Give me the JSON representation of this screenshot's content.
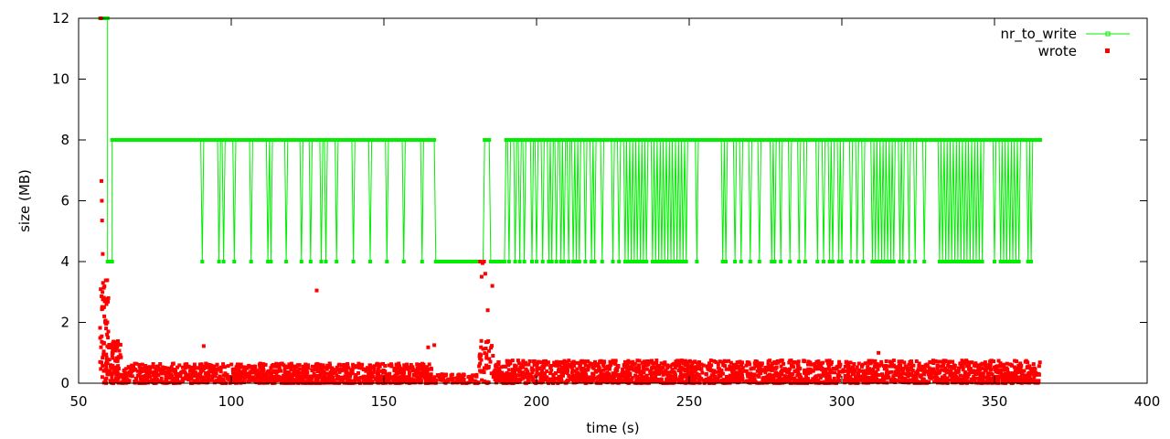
{
  "chart_data": {
    "type": "line",
    "xlabel": "time (s)",
    "ylabel": "size (MB)",
    "xlim": [
      50,
      400
    ],
    "ylim": [
      0,
      12
    ],
    "x_ticks": [
      "50",
      "100",
      "150",
      "200",
      "250",
      "300",
      "350",
      "400"
    ],
    "y_ticks": [
      "0",
      "2",
      "4",
      "6",
      "8",
      "10",
      "12"
    ],
    "grid": false,
    "legend_position": "top-right",
    "series": [
      {
        "name": "nr_to_write",
        "style": "line+points",
        "color": "#00ee00",
        "segments": [
          {
            "x_start": 57,
            "x_end": 59.5,
            "y": 12
          },
          {
            "x_start": 59.5,
            "x_end": 61,
            "y": 4
          },
          {
            "x_start": 61,
            "x_end": 166.5,
            "y": 8,
            "dips_to": 4,
            "dips_at": [
              90.5,
              96,
              97.5,
              101,
              106.5,
              112,
              113,
              118,
              123,
              126,
              129.5,
              131,
              134.5,
              140,
              145.5,
              151,
              156.5,
              162.5
            ]
          },
          {
            "x_start": 167,
            "x_end": 182.5,
            "y": 4
          },
          {
            "x_start": 183,
            "x_end": 184.5,
            "y": 8
          },
          {
            "x_start": 185,
            "x_end": 189.5,
            "y": 4
          },
          {
            "x_start": 190,
            "x_end": 365,
            "y": 8,
            "dips_to": 4,
            "dips_at": [
              191,
              193,
              194.5,
              196,
              198.5,
              200,
              202,
              204,
              205,
              206.5,
              208,
              209,
              210.5,
              212,
              213,
              214,
              216,
              218,
              219,
              221.5,
              225,
              227,
              229,
              230,
              231,
              232,
              233,
              234,
              235,
              236,
              238,
              239,
              240,
              241,
              242,
              243,
              244,
              245,
              246,
              247,
              248,
              249,
              252.5,
              261,
              262,
              265,
              267,
              270,
              273,
              277,
              278,
              280,
              283,
              286,
              288,
              292,
              294,
              296,
              297,
              299,
              300,
              303,
              305,
              307,
              310,
              311,
              312,
              313,
              314,
              315,
              316,
              317,
              319,
              320,
              322,
              324,
              327,
              332,
              333,
              334,
              335,
              336,
              337,
              338,
              339,
              340,
              341,
              342,
              343,
              344,
              345,
              346,
              350,
              352,
              353,
              354,
              355,
              356,
              357,
              358,
              361,
              362
            ]
          }
        ]
      },
      {
        "name": "wrote",
        "style": "points",
        "color": "#ff0000",
        "clusters": [
          {
            "x_start": 57,
            "x_end": 60,
            "y_min": 0,
            "y_max": 3.4,
            "count": 60
          },
          {
            "x_start": 60,
            "x_end": 64,
            "y_min": 0,
            "y_max": 1.4,
            "count": 80
          },
          {
            "x_start": 64,
            "x_end": 166,
            "y_min": 0,
            "y_max": 0.65,
            "count": 1200
          },
          {
            "x_start": 166,
            "x_end": 181,
            "y_min": 0,
            "y_max": 0.3,
            "count": 90
          },
          {
            "x_start": 181,
            "x_end": 186,
            "y_min": 0,
            "y_max": 1.4,
            "count": 40
          },
          {
            "x_start": 186,
            "x_end": 365,
            "y_min": 0,
            "y_max": 0.75,
            "count": 2200
          }
        ],
        "outliers": [
          [
            57.3,
            12
          ],
          [
            57.5,
            6.65
          ],
          [
            57.6,
            6.0
          ],
          [
            57.7,
            5.35
          ],
          [
            57.9,
            4.25
          ],
          [
            57.8,
            3.0
          ],
          [
            58.0,
            3.3
          ],
          [
            58.2,
            2.5
          ],
          [
            58.4,
            2.2
          ],
          [
            58.7,
            2.0
          ],
          [
            59.0,
            1.8
          ],
          [
            59.3,
            1.6
          ],
          [
            59.6,
            1.5
          ],
          [
            91,
            1.22
          ],
          [
            128,
            3.05
          ],
          [
            164.5,
            1.18
          ],
          [
            166.5,
            1.25
          ],
          [
            181.5,
            4.0
          ],
          [
            182.3,
            3.95
          ],
          [
            182.8,
            4.0
          ],
          [
            183.2,
            3.6
          ],
          [
            182.0,
            3.5
          ],
          [
            184.0,
            2.4
          ],
          [
            185.5,
            3.2
          ],
          [
            183.5,
            1.35
          ],
          [
            181.5,
            0.95
          ],
          [
            184.5,
            0.8
          ],
          [
            312,
            1.0
          ]
        ]
      }
    ]
  }
}
